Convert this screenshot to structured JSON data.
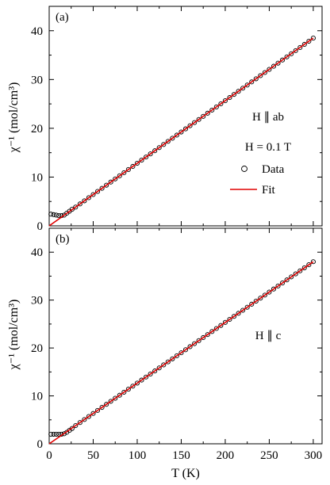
{
  "chart_data": [
    {
      "type": "scatter",
      "panel_label": "(a)",
      "annotations": [
        "H ∥ ab",
        "H = 0.1 T"
      ],
      "legend": {
        "data_label": "Data",
        "fit_label": "Fit",
        "placement": "center-right"
      },
      "xlim": [
        0,
        310
      ],
      "ylim": [
        0,
        45
      ],
      "xticks": [
        0,
        50,
        100,
        150,
        200,
        250,
        300
      ],
      "yticks": [
        0,
        10,
        20,
        30,
        40
      ],
      "ylabel": "χ⁻¹ (mol/cm³)",
      "series": [
        {
          "name": "Data",
          "type": "scatter",
          "x_start": 2,
          "x_end": 300,
          "x_step": 5,
          "low_t_points": [
            [
              2,
              2.4
            ],
            [
              5,
              2.3
            ],
            [
              8,
              2.2
            ],
            [
              11,
              2.1
            ],
            [
              14,
              2.1
            ],
            [
              17,
              2.2
            ],
            [
              20,
              2.6
            ],
            [
              23,
              3.0
            ],
            [
              26,
              3.4
            ]
          ],
          "slope": 0.1283,
          "intercept": 0
        },
        {
          "name": "Fit",
          "type": "line",
          "x": [
            0,
            300
          ],
          "y": [
            0,
            38.5
          ]
        }
      ]
    },
    {
      "type": "scatter",
      "panel_label": "(b)",
      "annotations": [
        "H ∥ c"
      ],
      "xlim": [
        0,
        310
      ],
      "ylim": [
        0,
        45
      ],
      "xticks": [
        0,
        50,
        100,
        150,
        200,
        250,
        300
      ],
      "yticks": [
        0,
        10,
        20,
        30,
        40
      ],
      "xlabel": "T (K)",
      "ylabel": "χ⁻¹ (mol/cm³)",
      "series": [
        {
          "name": "Data",
          "type": "scatter",
          "x_start": 2,
          "x_end": 300,
          "x_step": 5,
          "low_t_points": [
            [
              2,
              2.0
            ],
            [
              5,
              2.0
            ],
            [
              8,
              2.0
            ],
            [
              11,
              2.0
            ],
            [
              14,
              2.0
            ],
            [
              17,
              2.1
            ],
            [
              20,
              2.4
            ],
            [
              23,
              2.8
            ],
            [
              26,
              3.2
            ]
          ],
          "slope": 0.1267,
          "intercept": 0
        },
        {
          "name": "Fit",
          "type": "line",
          "x": [
            0,
            300
          ],
          "y": [
            0,
            38.0
          ]
        }
      ]
    }
  ],
  "colors": {
    "fit": "#e00000",
    "marker": "#000000"
  }
}
